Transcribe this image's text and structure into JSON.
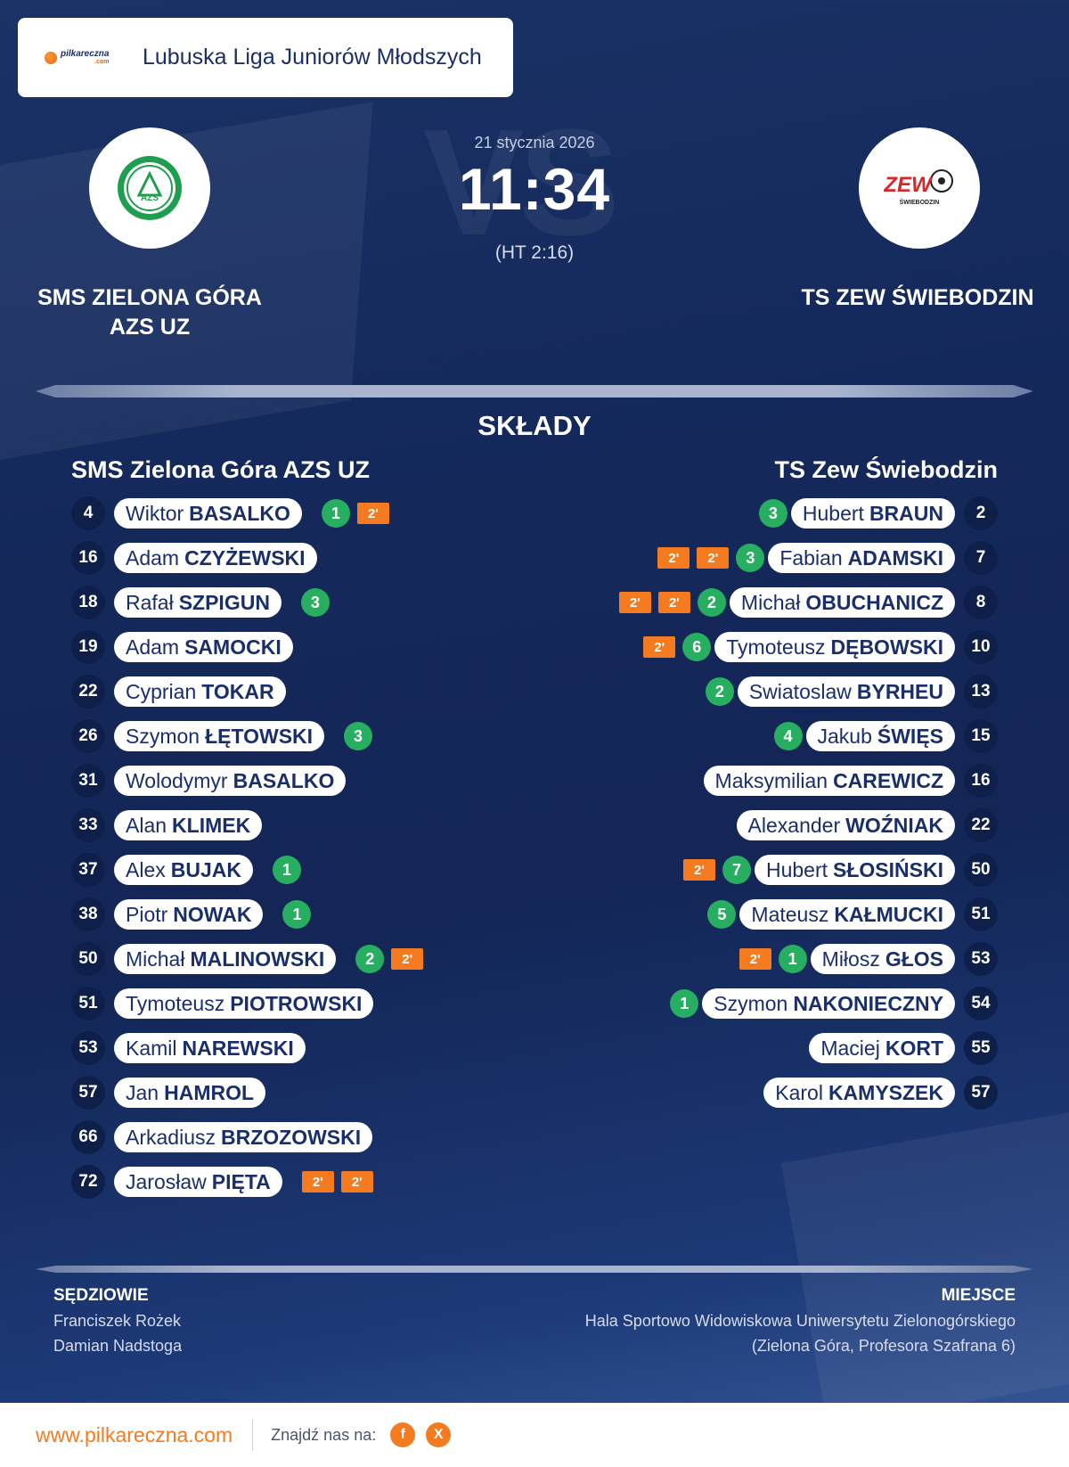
{
  "league": {
    "logo_text": "pilkareczna",
    "logo_sub": ".com",
    "name": "Lubuska Liga Juniorów Młodszych"
  },
  "match": {
    "date": "21 stycznia 2026",
    "score": "11:34",
    "halftime": "(HT 2:16)",
    "vs_text": "VS"
  },
  "home": {
    "name_line1": "SMS ZIELONA GÓRA",
    "name_line2": "AZS UZ",
    "lineup_title": "SMS Zielona Góra AZS UZ",
    "crest": "azs-uz-crest",
    "crest_text": "AZS",
    "crest_color": "#1f9e4f",
    "players": [
      {
        "number": "4",
        "first": "Wiktor",
        "last": "BASALKO",
        "goals": "1",
        "suspensions": [
          "2'"
        ]
      },
      {
        "number": "16",
        "first": "Adam",
        "last": "CZYŻEWSKI",
        "goals": "",
        "suspensions": []
      },
      {
        "number": "18",
        "first": "Rafał",
        "last": "SZPIGUN",
        "goals": "3",
        "suspensions": []
      },
      {
        "number": "19",
        "first": "Adam",
        "last": "SAMOCKI",
        "goals": "",
        "suspensions": []
      },
      {
        "number": "22",
        "first": "Cyprian",
        "last": "TOKAR",
        "goals": "",
        "suspensions": []
      },
      {
        "number": "26",
        "first": "Szymon",
        "last": "ŁĘTOWSKI",
        "goals": "3",
        "suspensions": []
      },
      {
        "number": "31",
        "first": "Wolodymyr",
        "last": "BASALKO",
        "goals": "",
        "suspensions": []
      },
      {
        "number": "33",
        "first": "Alan",
        "last": "KLIMEK",
        "goals": "",
        "suspensions": []
      },
      {
        "number": "37",
        "first": "Alex",
        "last": "BUJAK",
        "goals": "1",
        "suspensions": []
      },
      {
        "number": "38",
        "first": "Piotr",
        "last": "NOWAK",
        "goals": "1",
        "suspensions": []
      },
      {
        "number": "50",
        "first": "Michał",
        "last": "MALINOWSKI",
        "goals": "2",
        "suspensions": [
          "2'"
        ]
      },
      {
        "number": "51",
        "first": "Tymoteusz",
        "last": "PIOTROWSKI",
        "goals": "",
        "suspensions": []
      },
      {
        "number": "53",
        "first": "Kamil",
        "last": "NAREWSKI",
        "goals": "",
        "suspensions": []
      },
      {
        "number": "57",
        "first": "Jan",
        "last": "HAMROL",
        "goals": "",
        "suspensions": []
      },
      {
        "number": "66",
        "first": "Arkadiusz",
        "last": "BRZOZOWSKI",
        "goals": "",
        "suspensions": []
      },
      {
        "number": "72",
        "first": "Jarosław",
        "last": "PIĘTA",
        "goals": "",
        "suspensions": [
          "2'",
          "2'"
        ]
      }
    ]
  },
  "away": {
    "name_line1": "TS ZEW ŚWIEBODZIN",
    "lineup_title": "TS Zew Świebodzin",
    "crest": "zew-swiebodzin-crest",
    "crest_text": "ZEW",
    "crest_subtext": "ŚWIEBODZIN",
    "crest_color": "#d62828",
    "players": [
      {
        "number": "2",
        "first": "Hubert",
        "last": "BRAUN",
        "goals": "3",
        "suspensions": []
      },
      {
        "number": "7",
        "first": "Fabian",
        "last": "ADAMSKI",
        "goals": "3",
        "suspensions": [
          "2'",
          "2'"
        ]
      },
      {
        "number": "8",
        "first": "Michał",
        "last": "OBUCHANICZ",
        "goals": "2",
        "suspensions": [
          "2'",
          "2'"
        ]
      },
      {
        "number": "10",
        "first": "Tymoteusz",
        "last": "DĘBOWSKI",
        "goals": "6",
        "suspensions": [
          "2'"
        ]
      },
      {
        "number": "13",
        "first": "Swiatoslaw",
        "last": "BYRHEU",
        "goals": "2",
        "suspensions": []
      },
      {
        "number": "15",
        "first": "Jakub",
        "last": "ŚWIĘS",
        "goals": "4",
        "suspensions": []
      },
      {
        "number": "16",
        "first": "Maksymilian",
        "last": "CAREWICZ",
        "goals": "",
        "suspensions": []
      },
      {
        "number": "22",
        "first": "Alexander",
        "last": "WOŹNIAK",
        "goals": "",
        "suspensions": []
      },
      {
        "number": "50",
        "first": "Hubert",
        "last": "SŁOSIŃSKI",
        "goals": "7",
        "suspensions": [
          "2'"
        ]
      },
      {
        "number": "51",
        "first": "Mateusz",
        "last": "KAŁMUCKI",
        "goals": "5",
        "suspensions": []
      },
      {
        "number": "53",
        "first": "Miłosz",
        "last": "GŁOS",
        "goals": "1",
        "suspensions": [
          "2'"
        ]
      },
      {
        "number": "54",
        "first": "Szymon",
        "last": "NAKONIECZNY",
        "goals": "1",
        "suspensions": []
      },
      {
        "number": "55",
        "first": "Maciej",
        "last": "KORT",
        "goals": "",
        "suspensions": []
      },
      {
        "number": "57",
        "first": "Karol",
        "last": "KAMYSZEK",
        "goals": "",
        "suspensions": []
      }
    ]
  },
  "lineups_title": "SKŁADY",
  "referees": {
    "title": "SĘDZIOWIE",
    "names": [
      "Franciszek Rożek",
      "Damian Nadstoga"
    ]
  },
  "venue": {
    "title": "MIEJSCE",
    "lines": [
      "Hala Sportowo Widowiskowa Uniwersytetu Zielonogórskiego",
      "(Zielona Góra, Profesora Szafrana 6)"
    ]
  },
  "footer": {
    "site": "www.pilkareczna.com",
    "find_us": "Znajdź nas na:",
    "social": [
      {
        "icon": "facebook-icon",
        "glyph": "f"
      },
      {
        "icon": "x-icon",
        "glyph": "X"
      }
    ],
    "accent": "#f47b20"
  }
}
